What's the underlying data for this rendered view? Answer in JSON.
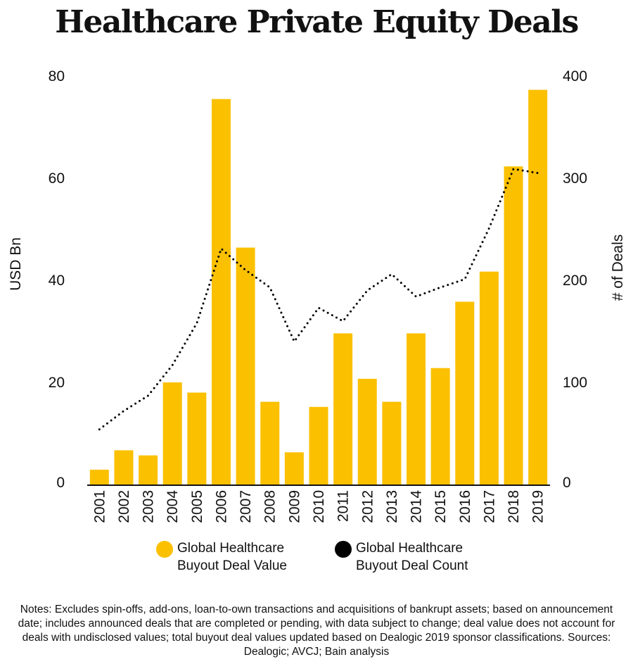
{
  "title": "Healthcare Private Equity Deals",
  "chart_data": {
    "type": "bar+line",
    "title": "Healthcare Private Equity Deals",
    "categories": [
      "2001",
      "2002",
      "2003",
      "2004",
      "2005",
      "2006",
      "2007",
      "2008",
      "2009",
      "2010",
      "2011",
      "2012",
      "2013",
      "2014",
      "2015",
      "2016",
      "2017",
      "2018",
      "2019"
    ],
    "series": [
      {
        "name": "Global Healthcare Buyout Deal Value",
        "type": "bar",
        "axis": "left",
        "color": "#FBC000",
        "values": [
          2.9,
          6.7,
          5.7,
          20.0,
          18.0,
          75.5,
          46.4,
          16.2,
          6.3,
          15.2,
          29.6,
          20.7,
          16.2,
          29.6,
          22.8,
          35.8,
          41.7,
          62.3,
          77.3
        ]
      },
      {
        "name": "Global Healthcare Buyout Deal Count",
        "type": "line",
        "style": "dotted",
        "axis": "right",
        "color": "#000000",
        "values": [
          54,
          72,
          87,
          117,
          158,
          231,
          210,
          193,
          140,
          173,
          160,
          190,
          206,
          184,
          193,
          201,
          251,
          309,
          305
        ]
      }
    ],
    "ylabel": "USD Bn",
    "ylabel_right": "# of Deals",
    "ylim": [
      0,
      80
    ],
    "ylim_right": [
      0,
      400
    ],
    "yticks": [
      "0",
      "20",
      "40",
      "60",
      "80"
    ],
    "yticks_right": [
      "0",
      "100",
      "200",
      "300",
      "400"
    ],
    "grid": false,
    "legend": "bottom"
  },
  "legend": {
    "value_line1": "Global Healthcare",
    "value_line2": "Buyout Deal Value",
    "count_line1": "Global Healthcare",
    "count_line2": "Buyout Deal Count"
  },
  "notes": "Notes: Excludes spin-offs, add-ons, loan-to-own transactions and acquisitions of bankrupt assets; based on announcement date; includes announced deals that are completed or pending, with data subject to change; deal value does not account for deals with undisclosed values; total buyout deal values updated based on Dealogic 2019 sponsor classifications. Sources: Dealogic; AVCJ; Bain analysis"
}
